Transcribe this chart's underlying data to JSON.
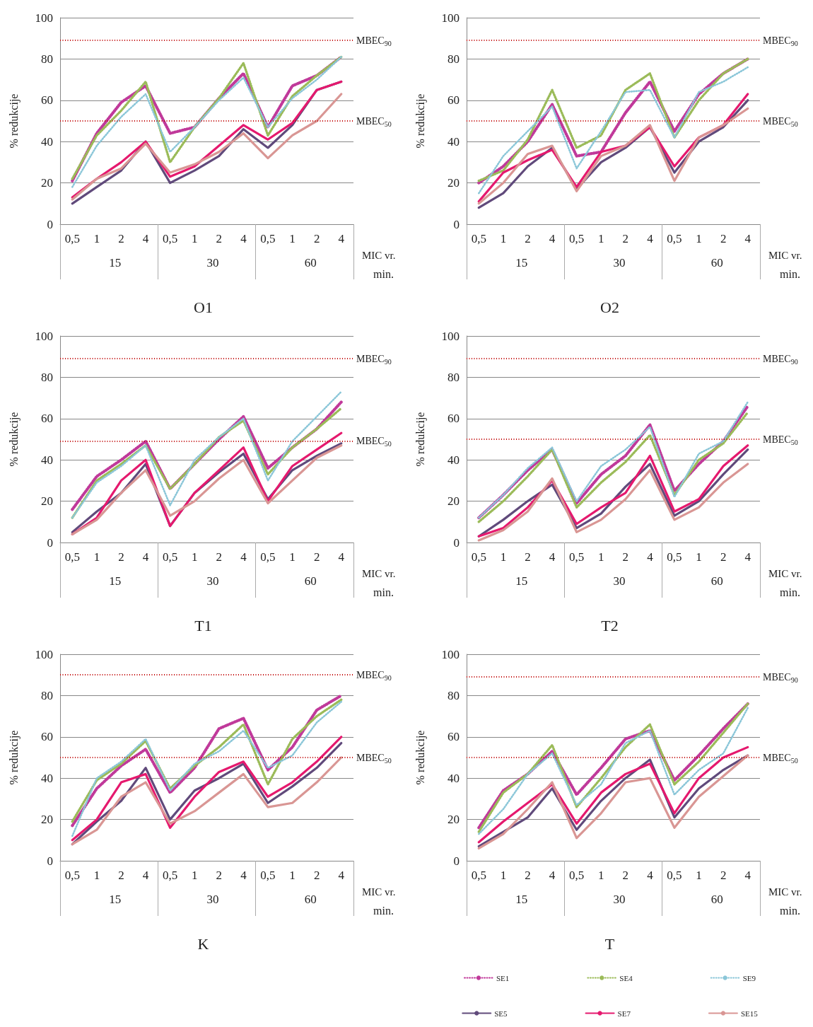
{
  "chart_data": [
    {
      "type": "line",
      "title": "O1",
      "xlabel": "MIC vr.",
      "ylabel": "% redukcije",
      "categories": [
        "0,5",
        "1",
        "2",
        "4",
        "0,5",
        "1",
        "2",
        "4",
        "0,5",
        "1",
        "2",
        "4"
      ],
      "ylim": [
        0,
        100
      ],
      "yticks": [
        0,
        20,
        40,
        60,
        80,
        100
      ],
      "grid": "y",
      "marker": "none",
      "annotations": [
        "15",
        "30",
        "60",
        "min."
      ],
      "ref_lines": [
        {
          "axis": "y",
          "value": 89,
          "label": "MBEC$_{90}$",
          "color": "#c00000",
          "line_style": "dotted"
        },
        {
          "axis": "y",
          "value": 50,
          "label": "MBEC$_{50}$",
          "color": "#c00000",
          "line_style": "dotted"
        }
      ],
      "series": [
        {
          "color": "#c0399a",
          "line_style": "dotted",
          "values": [
            21,
            44,
            59,
            67,
            44,
            47,
            61,
            73,
            47,
            67,
            72,
            81
          ]
        },
        {
          "color": "#9bbb59",
          "line_style": "dotted",
          "values": [
            22,
            43,
            55,
            69,
            30,
            47,
            61,
            78,
            43,
            62,
            72,
            81
          ]
        },
        {
          "color": "#8ac6d8",
          "line_style": "dotted",
          "values": [
            18,
            38,
            52,
            63,
            35,
            47,
            60,
            71,
            47,
            61,
            70,
            81
          ]
        },
        {
          "color": "#604a7b",
          "line_style": "solid",
          "values": [
            10,
            18,
            26,
            40,
            20,
            26,
            33,
            46,
            37,
            48,
            65,
            69
          ]
        },
        {
          "color": "#e5196e",
          "line_style": "solid",
          "values": [
            13,
            22,
            30,
            40,
            23,
            28,
            38,
            48,
            41,
            49,
            65,
            69
          ]
        },
        {
          "color": "#d99694",
          "line_style": "solid",
          "values": [
            12,
            22,
            27,
            39,
            25,
            29,
            35,
            44,
            32,
            43,
            50,
            63
          ]
        }
      ]
    },
    {
      "type": "line",
      "title": "O2",
      "xlabel": "MIC vr.",
      "ylabel": "% redukcije",
      "categories": [
        "0,5",
        "1",
        "2",
        "4",
        "0,5",
        "1",
        "2",
        "4",
        "0,5",
        "1",
        "2",
        "4"
      ],
      "ylim": [
        0,
        100
      ],
      "yticks": [
        0,
        20,
        40,
        60,
        80,
        100
      ],
      "grid": "y",
      "marker": "none",
      "annotations": [
        "15",
        "30",
        "60",
        "min."
      ],
      "ref_lines": [
        {
          "axis": "y",
          "value": 89,
          "label": "MBEC$_{90}$",
          "color": "#c00000",
          "line_style": "dotted"
        },
        {
          "axis": "y",
          "value": 50,
          "label": "MBEC$_{50}$",
          "color": "#c00000",
          "line_style": "dotted"
        }
      ],
      "series": [
        {
          "color": "#c0399a",
          "line_style": "dotted",
          "values": [
            20,
            28,
            40,
            58,
            33,
            35,
            54,
            69,
            45,
            63,
            73,
            80
          ]
        },
        {
          "color": "#9bbb59",
          "line_style": "dotted",
          "values": [
            21,
            26,
            41,
            65,
            37,
            43,
            65,
            73,
            42,
            60,
            73,
            80
          ]
        },
        {
          "color": "#8ac6d8",
          "line_style": "dotted",
          "values": [
            15,
            33,
            45,
            57,
            27,
            45,
            64,
            65,
            42,
            64,
            69,
            76
          ]
        },
        {
          "color": "#604a7b",
          "line_style": "solid",
          "values": [
            8,
            15,
            28,
            37,
            17,
            30,
            37,
            47,
            25,
            40,
            47,
            60
          ]
        },
        {
          "color": "#e5196e",
          "line_style": "solid",
          "values": [
            11,
            25,
            31,
            36,
            18,
            35,
            38,
            47,
            28,
            42,
            48,
            63
          ]
        },
        {
          "color": "#d99694",
          "line_style": "solid",
          "values": [
            10,
            20,
            34,
            38,
            16,
            33,
            38,
            48,
            21,
            42,
            48,
            56
          ]
        }
      ]
    },
    {
      "type": "line",
      "title": "T1",
      "xlabel": "MIC vr.",
      "ylabel": "% redukcije",
      "categories": [
        "0,5",
        "1",
        "2",
        "4",
        "0,5",
        "1",
        "2",
        "4",
        "0,5",
        "1",
        "2",
        "4"
      ],
      "ylim": [
        0,
        100
      ],
      "yticks": [
        0,
        20,
        40,
        60,
        80,
        100
      ],
      "grid": "y",
      "marker": "none",
      "annotations": [
        "15",
        "30",
        "60",
        "min."
      ],
      "ref_lines": [
        {
          "axis": "y",
          "value": 89,
          "label": "MBEC$_{90}$",
          "color": "#c00000",
          "line_style": "dotted"
        },
        {
          "axis": "y",
          "value": 49,
          "label": "MBEC$_{50}$",
          "color": "#c00000",
          "line_style": "dotted"
        }
      ],
      "series": [
        {
          "color": "#c0399a",
          "line_style": "dotted",
          "values": [
            16,
            32,
            40,
            49,
            26,
            38,
            50,
            61,
            36,
            46,
            55,
            68
          ]
        },
        {
          "color": "#9bbb59",
          "line_style": "dotted",
          "values": [
            12,
            30,
            38,
            47,
            26,
            38,
            51,
            59,
            33,
            46,
            55,
            65
          ]
        },
        {
          "color": "#8ac6d8",
          "line_style": "dotted",
          "values": [
            12,
            29,
            37,
            47,
            18,
            40,
            51,
            60,
            30,
            49,
            61,
            73
          ]
        },
        {
          "color": "#604a7b",
          "line_style": "solid",
          "values": [
            5,
            15,
            24,
            38,
            8,
            24,
            34,
            43,
            21,
            35,
            42,
            48
          ]
        },
        {
          "color": "#e5196e",
          "line_style": "solid",
          "values": [
            4,
            12,
            30,
            40,
            8,
            24,
            35,
            46,
            20,
            37,
            45,
            53
          ]
        },
        {
          "color": "#d99694",
          "line_style": "solid",
          "values": [
            4,
            11,
            24,
            35,
            13,
            20,
            31,
            40,
            19,
            30,
            41,
            47
          ]
        }
      ]
    },
    {
      "type": "line",
      "title": "T2",
      "xlabel": "MIC vr.",
      "ylabel": "% redukcije",
      "categories": [
        "0,5",
        "1",
        "2",
        "4",
        "0,5",
        "1",
        "2",
        "4",
        "0,5",
        "1",
        "2",
        "4"
      ],
      "ylim": [
        0,
        100
      ],
      "yticks": [
        0,
        20,
        40,
        60,
        80,
        100
      ],
      "grid": "y",
      "marker": "none",
      "annotations": [
        "15",
        "30",
        "60",
        "min."
      ],
      "ref_lines": [
        {
          "axis": "y",
          "value": 89,
          "label": "MBEC$_{90}$",
          "color": "#c00000",
          "line_style": "dotted"
        },
        {
          "axis": "y",
          "value": 50,
          "label": "MBEC$_{50}$",
          "color": "#c00000",
          "line_style": "dotted"
        }
      ],
      "series": [
        {
          "color": "#c0399a",
          "line_style": "dotted",
          "values": [
            12,
            23,
            35,
            45,
            19,
            33,
            42,
            57,
            25,
            38,
            49,
            66
          ]
        },
        {
          "color": "#9bbb59",
          "line_style": "dotted",
          "values": [
            10,
            20,
            32,
            45,
            17,
            29,
            39,
            52,
            23,
            40,
            48,
            63
          ]
        },
        {
          "color": "#8ac6d8",
          "line_style": "dotted",
          "values": [
            12,
            23,
            36,
            46,
            20,
            37,
            45,
            56,
            22,
            43,
            49,
            68
          ]
        },
        {
          "color": "#604a7b",
          "line_style": "solid",
          "values": [
            3,
            11,
            20,
            28,
            7,
            14,
            27,
            38,
            13,
            20,
            33,
            45
          ]
        },
        {
          "color": "#e5196e",
          "line_style": "solid",
          "values": [
            3,
            7,
            17,
            30,
            9,
            17,
            24,
            42,
            15,
            21,
            37,
            47
          ]
        },
        {
          "color": "#d99694",
          "line_style": "solid",
          "values": [
            1,
            6,
            15,
            31,
            5,
            11,
            21,
            35,
            11,
            17,
            29,
            38
          ]
        }
      ]
    },
    {
      "type": "line",
      "title": "K",
      "xlabel": "MIC vr.",
      "ylabel": "% redukcije",
      "categories": [
        "0,5",
        "1",
        "2",
        "4",
        "0,5",
        "1",
        "2",
        "4",
        "0,5",
        "1",
        "2",
        "4"
      ],
      "ylim": [
        0,
        100
      ],
      "yticks": [
        0,
        20,
        40,
        60,
        80,
        100
      ],
      "grid": "y",
      "marker": "none",
      "annotations": [
        "15",
        "30",
        "60",
        "min."
      ],
      "ref_lines": [
        {
          "axis": "y",
          "value": 90,
          "label": "MBEC$_{90}$",
          "color": "#c00000",
          "line_style": "dotted"
        },
        {
          "axis": "y",
          "value": 50,
          "label": "MBEC$_{50}$",
          "color": "#c00000",
          "line_style": "dotted"
        }
      ],
      "series": [
        {
          "color": "#c0399a",
          "line_style": "dotted",
          "values": [
            17,
            35,
            46,
            54,
            33,
            45,
            64,
            69,
            44,
            55,
            73,
            80
          ]
        },
        {
          "color": "#9bbb59",
          "line_style": "dotted",
          "values": [
            19,
            39,
            47,
            58,
            35,
            46,
            55,
            66,
            37,
            59,
            70,
            78
          ]
        },
        {
          "color": "#8ac6d8",
          "line_style": "dotted",
          "values": [
            12,
            40,
            48,
            59,
            34,
            47,
            53,
            63,
            45,
            51,
            67,
            77
          ]
        },
        {
          "color": "#604a7b",
          "line_style": "solid",
          "values": [
            8,
            19,
            29,
            45,
            20,
            34,
            40,
            47,
            28,
            36,
            45,
            57
          ]
        },
        {
          "color": "#e5196e",
          "line_style": "solid",
          "values": [
            10,
            20,
            38,
            42,
            16,
            31,
            43,
            48,
            31,
            38,
            48,
            60
          ]
        },
        {
          "color": "#d99694",
          "line_style": "solid",
          "values": [
            8,
            15,
            31,
            38,
            18,
            24,
            33,
            42,
            26,
            28,
            38,
            50
          ]
        }
      ]
    },
    {
      "type": "line",
      "title": "T",
      "xlabel": "MIC vr.",
      "ylabel": "% redukcije",
      "categories": [
        "0,5",
        "1",
        "2",
        "4",
        "0,5",
        "1",
        "2",
        "4",
        "0,5",
        "1",
        "2",
        "4"
      ],
      "ylim": [
        0,
        100
      ],
      "yticks": [
        0,
        20,
        40,
        60,
        80,
        100
      ],
      "grid": "y",
      "marker": "none",
      "legend": "bottom",
      "annotations": [
        "15",
        "30",
        "60",
        "min."
      ],
      "ref_lines": [
        {
          "axis": "y",
          "value": 89,
          "label": "MBEC$_{90}$",
          "color": "#c00000",
          "line_style": "dotted"
        },
        {
          "axis": "y",
          "value": 50,
          "label": "MBEC$_{50}$",
          "color": "#c00000",
          "line_style": "dotted"
        }
      ],
      "series": [
        {
          "name": "SE1",
          "color": "#c0399a",
          "line_style": "dotted",
          "values": [
            16,
            34,
            42,
            53,
            32,
            45,
            59,
            63,
            39,
            51,
            64,
            76
          ]
        },
        {
          "name": "SE4",
          "color": "#9bbb59",
          "line_style": "dotted",
          "values": [
            14,
            33,
            42,
            56,
            26,
            40,
            55,
            66,
            37,
            48,
            62,
            76
          ]
        },
        {
          "name": "SE9",
          "color": "#8ac6d8",
          "line_style": "dotted",
          "values": [
            13,
            25,
            42,
            52,
            27,
            37,
            57,
            63,
            32,
            44,
            52,
            74
          ]
        },
        {
          "name": "SE5",
          "color": "#604a7b",
          "line_style": "solid",
          "values": [
            7,
            14,
            21,
            35,
            15,
            29,
            40,
            49,
            21,
            35,
            44,
            51
          ]
        },
        {
          "name": "SE7",
          "color": "#e5196e",
          "line_style": "solid",
          "values": [
            9,
            19,
            28,
            37,
            18,
            33,
            42,
            47,
            23,
            40,
            50,
            55
          ]
        },
        {
          "name": "SE15",
          "color": "#d99694",
          "line_style": "solid",
          "values": [
            6,
            13,
            25,
            38,
            11,
            23,
            38,
            40,
            16,
            31,
            41,
            51
          ]
        }
      ]
    }
  ]
}
